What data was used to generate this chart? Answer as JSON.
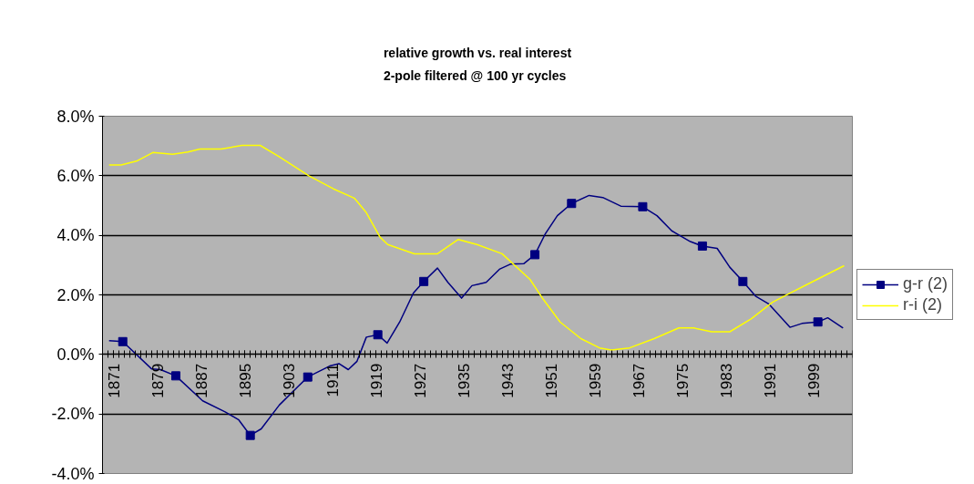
{
  "chart_data": {
    "type": "line",
    "title": "relative growth vs. real interest",
    "subtitle": "2-pole filtered @ 100 yr cycles",
    "xlim": [
      1869,
      2006
    ],
    "xticks": [
      1871,
      1879,
      1887,
      1895,
      1903,
      1911,
      1919,
      1927,
      1935,
      1943,
      1951,
      1959,
      1967,
      1975,
      1983,
      1991,
      1999
    ],
    "ylim": [
      -4,
      8
    ],
    "yticks": [
      {
        "value": -4,
        "label": "-4.0%"
      },
      {
        "value": -2,
        "label": "-2.0%"
      },
      {
        "value": 0,
        "label": "0.0%"
      },
      {
        "value": 2,
        "label": "2.0%"
      },
      {
        "value": 4,
        "label": "4.0%"
      },
      {
        "value": 6,
        "label": "6.0%"
      },
      {
        "value": 8,
        "label": "8.0%"
      }
    ],
    "grid": "y",
    "legend": "right",
    "line_style": "solid",
    "series": [
      {
        "name": "g-r (2)",
        "color": "#000080",
        "x": [
          1870.2,
          1872.7,
          1878,
          1879.6,
          1882.4,
          1887.3,
          1891.4,
          1893.9,
          1896,
          1898,
          1901.3,
          1904.6,
          1906.5,
          1910.5,
          1912.2,
          1913.9,
          1915.5,
          1917.2,
          1919.3,
          1921,
          1923.3,
          1925.8,
          1927.7,
          1930.2,
          1932.1,
          1934.6,
          1936.5,
          1937.7,
          1939.1,
          1941.6,
          1943.5,
          1946,
          1948,
          1949.9,
          1952.1,
          1954.7,
          1957.9,
          1960.4,
          1963.7,
          1967.7,
          1970.3,
          1973,
          1976.4,
          1978.6,
          1981.3,
          1983.6,
          1986,
          1988.3,
          1990.7,
          1994.6,
          1996.8,
          1999.7,
          2001.5,
          2004.3
        ],
        "values": [
          0.46,
          0.43,
          -0.49,
          -0.51,
          -0.72,
          -1.56,
          -1.93,
          -2.2,
          -2.72,
          -2.5,
          -1.7,
          -1.1,
          -0.76,
          -0.39,
          -0.31,
          -0.51,
          -0.23,
          0.58,
          0.66,
          0.38,
          1.09,
          2.06,
          2.45,
          2.9,
          2.42,
          1.89,
          2.31,
          2.36,
          2.42,
          2.87,
          3.03,
          3.05,
          3.35,
          4.05,
          4.66,
          5.07,
          5.34,
          5.27,
          4.98,
          4.96,
          4.66,
          4.15,
          3.79,
          3.64,
          3.56,
          2.93,
          2.45,
          1.96,
          1.7,
          0.91,
          1.04,
          1.09,
          1.23,
          0.89
        ]
      },
      {
        "type": "scatter",
        "marker": "square",
        "color": "#000080",
        "x": [
          1872.7,
          1882.4,
          1896,
          1906.5,
          1919.3,
          1927.7,
          1948,
          1954.7,
          1967.7,
          1978.6,
          1986,
          1999.7
        ],
        "values": [
          0.43,
          -0.72,
          -2.72,
          -0.76,
          0.66,
          2.45,
          3.35,
          5.07,
          4.96,
          3.64,
          2.45,
          1.09
        ]
      },
      {
        "name": "r-i (2)",
        "color": "#ffff00",
        "x": [
          1870.2,
          1872.4,
          1875.2,
          1878.2,
          1881.8,
          1884.6,
          1886.8,
          1890.7,
          1894.5,
          1897.8,
          1901.2,
          1906.7,
          1911.2,
          1915,
          1917.2,
          1919.7,
          1921.1,
          1926,
          1930.2,
          1934,
          1937.4,
          1942,
          1947.1,
          1949.3,
          1952.6,
          1956.4,
          1959.8,
          1962,
          1965.3,
          1969.8,
          1974.3,
          1977,
          1980.3,
          1983.6,
          1987.5,
          1991.4,
          1994.6,
          1998.5,
          2004.5
        ],
        "values": [
          6.36,
          6.36,
          6.49,
          6.78,
          6.72,
          6.8,
          6.9,
          6.9,
          7.02,
          7.02,
          6.65,
          6.0,
          5.56,
          5.25,
          4.76,
          3.94,
          3.69,
          3.38,
          3.38,
          3.86,
          3.69,
          3.38,
          2.52,
          1.91,
          1.09,
          0.53,
          0.22,
          0.15,
          0.22,
          0.53,
          0.89,
          0.89,
          0.76,
          0.76,
          1.19,
          1.75,
          2.06,
          2.42,
          2.98
        ]
      }
    ]
  }
}
